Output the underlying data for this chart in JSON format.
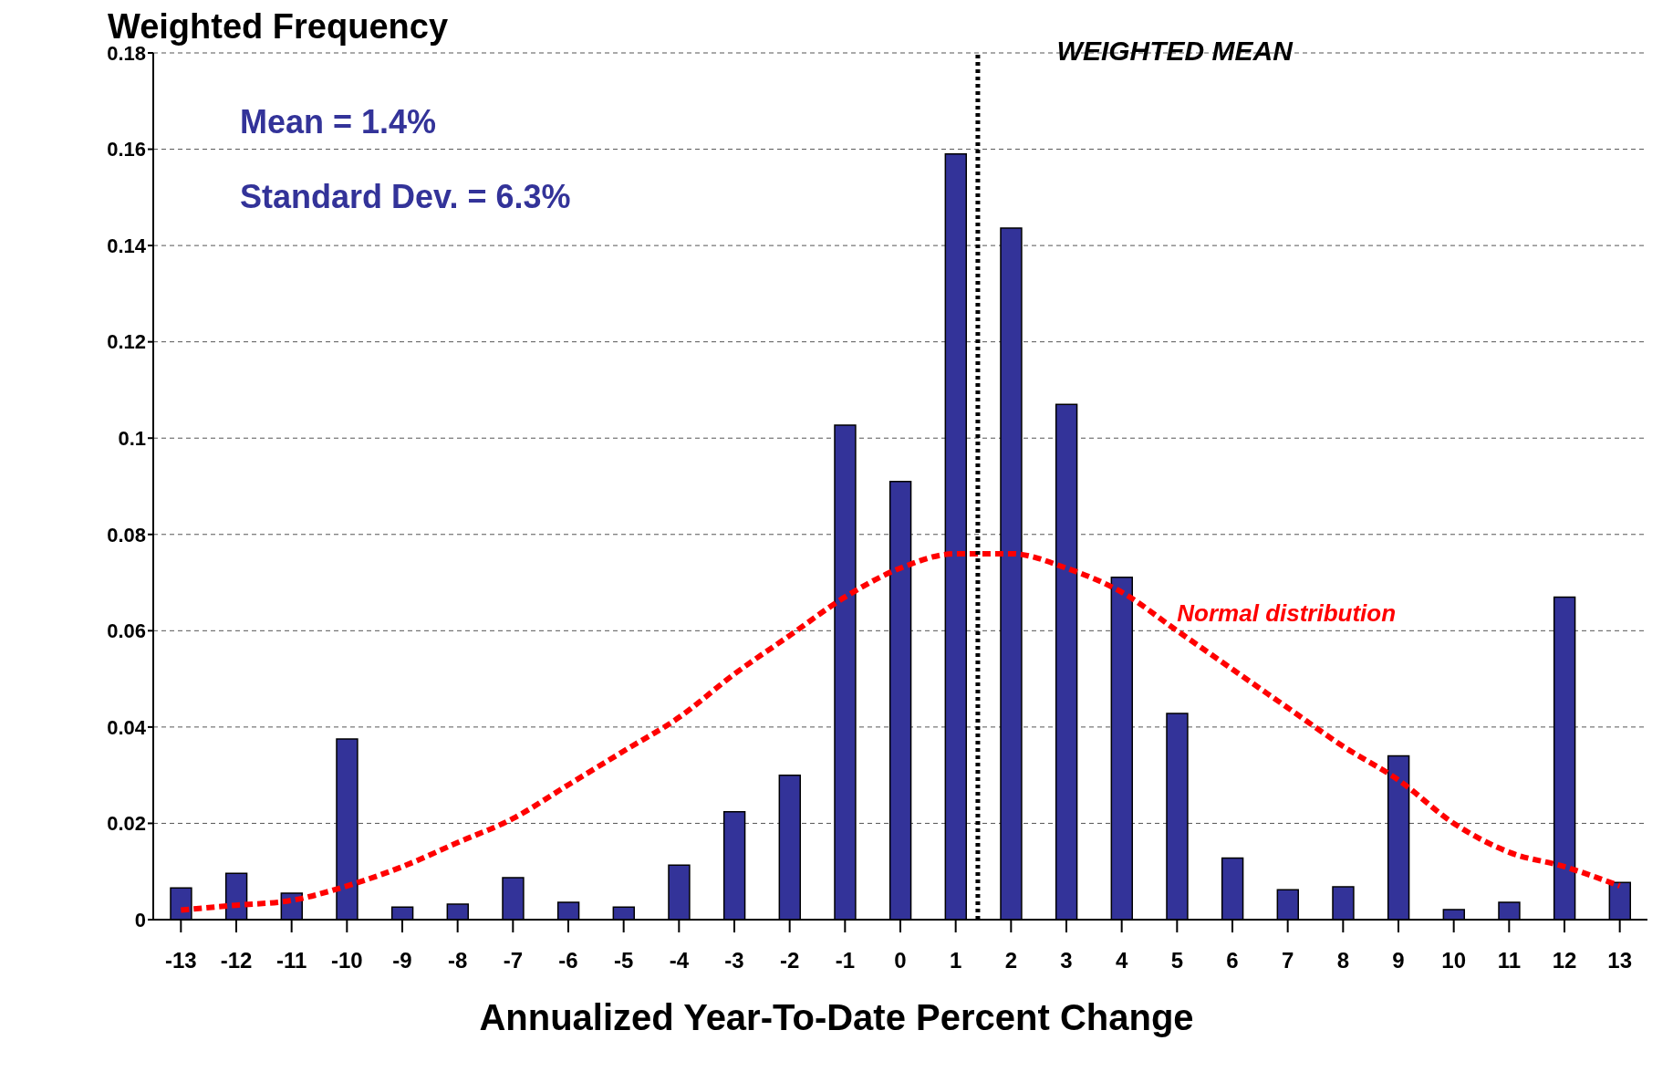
{
  "chart_data": {
    "type": "bar",
    "ylabel": "Weighted Frequency",
    "xlabel": "Annualized Year-To-Date Percent Change",
    "x": [
      -13,
      -12,
      -11,
      -10,
      -9,
      -8,
      -7,
      -6,
      -5,
      -4,
      -3,
      -2,
      -1,
      0,
      1,
      2,
      3,
      4,
      5,
      6,
      7,
      8,
      9,
      10,
      11,
      12,
      13
    ],
    "series": [
      {
        "color": "#333399",
        "values": [
          0.0066,
          0.0096,
          0.0055,
          0.0375,
          0.0026,
          0.0032,
          0.0087,
          0.0036,
          0.0026,
          0.0113,
          0.0224,
          0.03,
          0.1027,
          0.091,
          0.159,
          0.1436,
          0.107,
          0.0711,
          0.0428,
          0.0128,
          0.0062,
          0.0068,
          0.034,
          0.0021,
          0.0036,
          0.067,
          0.0077
        ]
      },
      {
        "type": "line",
        "name": "Normal distribution",
        "color": "#ff0000",
        "line_style": "dashed",
        "marker": "none",
        "values": [
          0.002,
          0.003,
          0.004,
          0.007,
          0.011,
          0.016,
          0.021,
          0.028,
          0.035,
          0.042,
          0.051,
          0.059,
          0.067,
          0.073,
          0.076,
          0.076,
          0.073,
          0.068,
          0.06,
          0.052,
          0.044,
          0.036,
          0.029,
          0.02,
          0.014,
          0.011,
          0.007
        ]
      }
    ],
    "xlim": [
      -13.5,
      13.5
    ],
    "xticks": [
      -13,
      -12,
      -11,
      -10,
      -9,
      -8,
      -7,
      -6,
      -5,
      -4,
      -3,
      -2,
      -1,
      0,
      1,
      2,
      3,
      4,
      5,
      6,
      7,
      8,
      9,
      10,
      11,
      12,
      13
    ],
    "ylim": [
      0,
      0.18
    ],
    "yticks": [
      0,
      0.02,
      0.04,
      0.06,
      0.08,
      0.1,
      0.12,
      0.14,
      0.16,
      0.18
    ],
    "grid": "y",
    "legend": false,
    "ref_lines": [
      {
        "axis": "x",
        "value": 1.4,
        "label": "WEIGHTED MEAN",
        "color": "#000000",
        "line_style": "dotted"
      }
    ],
    "annotations": [
      "Mean = 1.4%",
      "Standard Dev. = 6.3%"
    ]
  }
}
